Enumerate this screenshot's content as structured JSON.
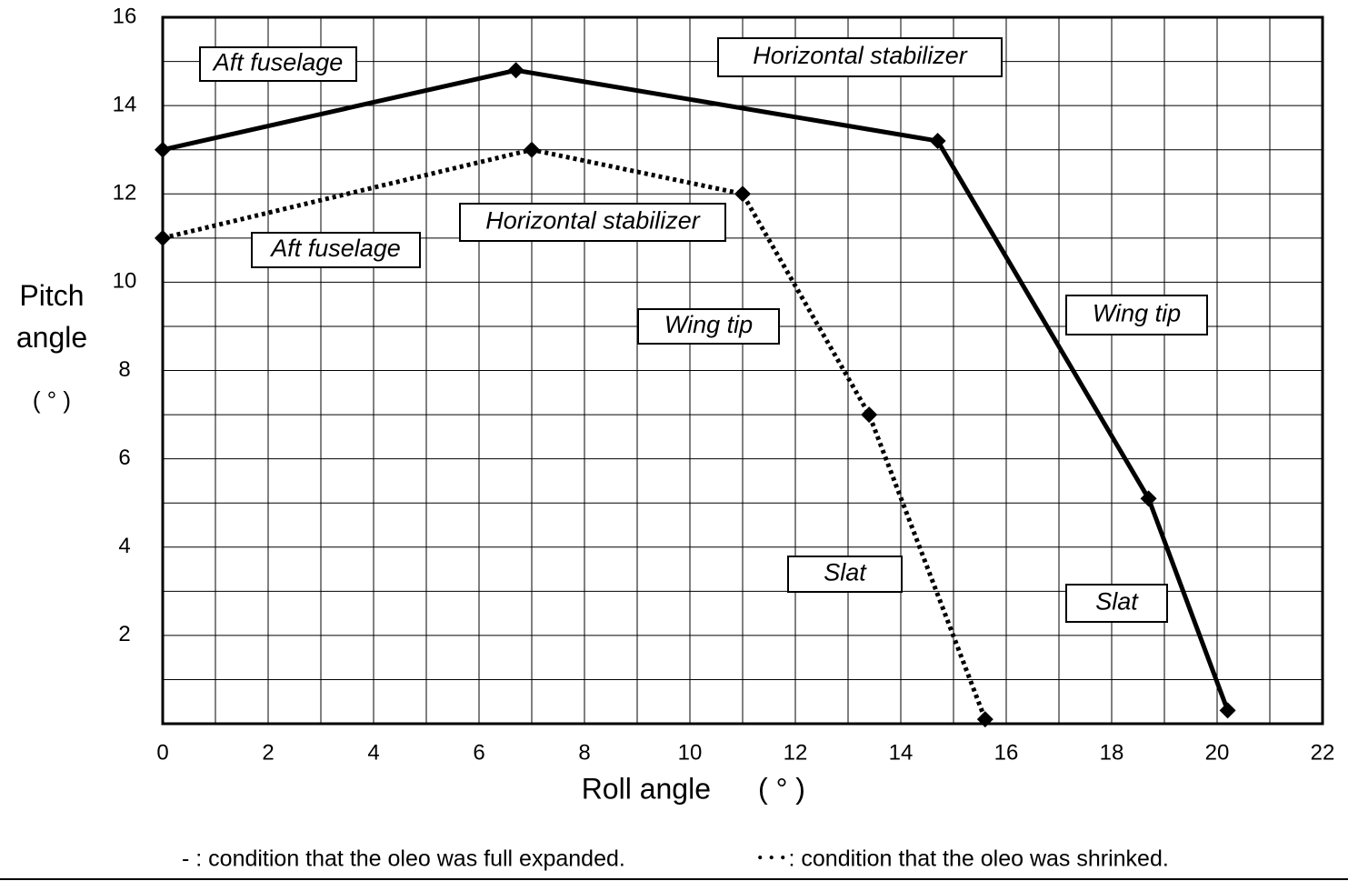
{
  "chart_data": {
    "type": "line",
    "x_label": "Roll angle",
    "x_unit": "( ° )",
    "y_label": "Pitch angle",
    "y_unit": "( ° )",
    "xlim": [
      0,
      22
    ],
    "xticks": [
      0,
      2,
      4,
      6,
      8,
      10,
      12,
      14,
      16,
      18,
      20,
      22
    ],
    "ylim": [
      0,
      16
    ],
    "yticks": [
      2,
      4,
      6,
      8,
      10,
      12,
      14,
      16
    ],
    "grid": true,
    "series": [
      {
        "name": "- : condition that the oleo was full expanded.",
        "color": "#000000",
        "style": "solid",
        "x": [
          0,
          6.7,
          14.7,
          18.7,
          20.2
        ],
        "values": [
          13,
          14.8,
          13.2,
          5.1,
          0.3
        ]
      },
      {
        "name": "･･･: condition that the oleo was shrinked.",
        "color": "#000000",
        "style": "dotted",
        "x": [
          0,
          7,
          11,
          13.4,
          15.6
        ],
        "values": [
          11,
          13,
          12,
          7,
          0.1
        ]
      }
    ],
    "annotations": [
      "Aft fuselage",
      "Horizontal stabilizer",
      "Horizontal stabilizer",
      "Aft fuselage",
      "Wing tip",
      "Wing tip",
      "Slat",
      "Slat"
    ]
  }
}
